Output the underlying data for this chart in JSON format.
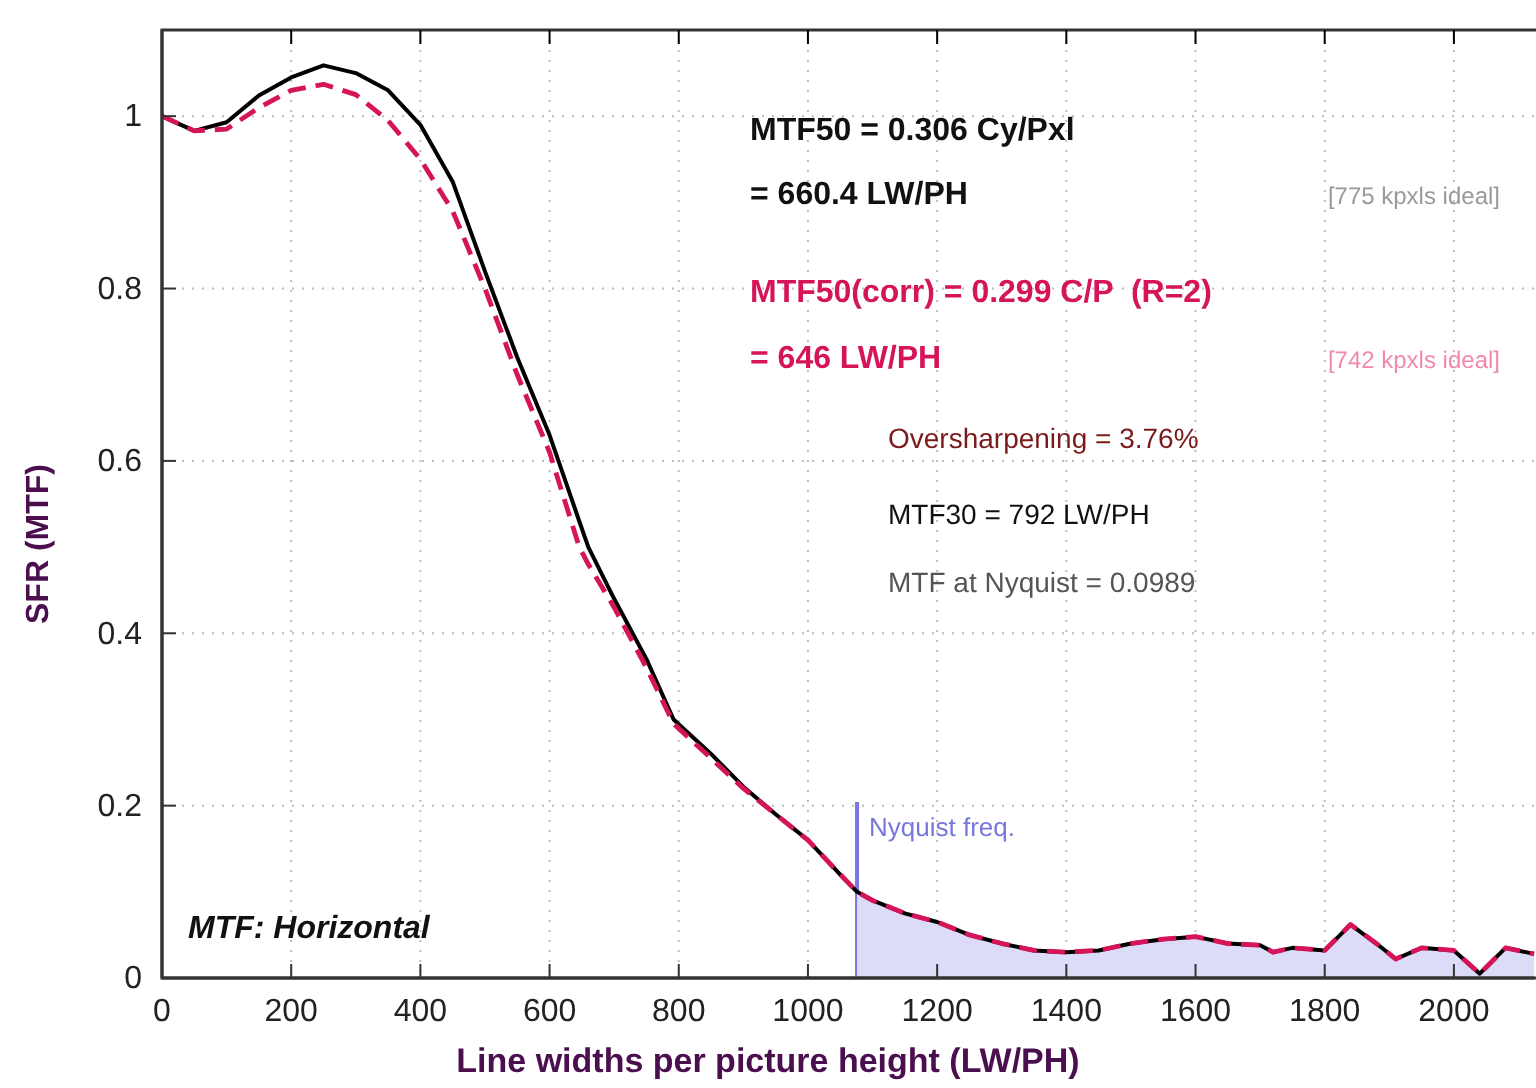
{
  "chart_data": {
    "type": "line",
    "xlabel": "Line widths per picture height (LW/PH)",
    "ylabel": "SFR (MTF)",
    "xlim": [
      0,
      2124
    ],
    "xticks": [
      0,
      200,
      400,
      600,
      800,
      1000,
      1200,
      1400,
      1600,
      1800,
      2000
    ],
    "ylim": [
      0,
      1.1
    ],
    "yticks": [
      0,
      0.2,
      0.4,
      0.6,
      0.8,
      1
    ],
    "grid": true,
    "x": [
      0,
      50,
      100,
      150,
      200,
      250,
      300,
      350,
      400,
      450,
      500,
      550,
      600,
      646,
      660,
      700,
      750,
      792,
      850,
      900,
      950,
      1000,
      1050,
      1076,
      1100,
      1150,
      1200,
      1250,
      1300,
      1350,
      1400,
      1450,
      1500,
      1550,
      1600,
      1650,
      1700,
      1720,
      1750,
      1800,
      1840,
      1880,
      1910,
      1950,
      2000,
      2040,
      2080,
      2124
    ],
    "series": [
      {
        "type": "area",
        "color": "#dcdcf8",
        "x": [
          1076,
          1100,
          1150,
          1200,
          1250,
          1300,
          1350,
          1400,
          1450,
          1500,
          1550,
          1600,
          1650,
          1700,
          1720,
          1750,
          1800,
          1840,
          1880,
          1910,
          1950,
          2000,
          2040,
          2080,
          2124
        ],
        "values": [
          0.1,
          0.09,
          0.075,
          0.065,
          0.05,
          0.04,
          0.032,
          0.03,
          0.032,
          0.04,
          0.045,
          0.048,
          0.04,
          0.038,
          0.03,
          0.035,
          0.032,
          0.062,
          0.04,
          0.022,
          0.035,
          0.032,
          0.005,
          0.035,
          0.028
        ]
      },
      {
        "color": "#000000",
        "line_style": "solid",
        "values": [
          1.0,
          0.983,
          0.993,
          1.024,
          1.045,
          1.059,
          1.05,
          1.03,
          0.99,
          0.924,
          0.82,
          0.72,
          0.63,
          0.53,
          0.5,
          0.44,
          0.37,
          0.3,
          0.26,
          0.222,
          0.19,
          0.16,
          0.12,
          0.1,
          0.09,
          0.075,
          0.065,
          0.05,
          0.04,
          0.032,
          0.03,
          0.032,
          0.04,
          0.045,
          0.048,
          0.04,
          0.038,
          0.03,
          0.035,
          0.032,
          0.062,
          0.04,
          0.022,
          0.035,
          0.032,
          0.005,
          0.035,
          0.028
        ]
      },
      {
        "color": "#d6145a",
        "line_style": "dashed",
        "values": [
          1.0,
          0.983,
          0.985,
          1.01,
          1.03,
          1.037,
          1.025,
          0.995,
          0.95,
          0.89,
          0.8,
          0.7,
          0.61,
          0.5,
          0.48,
          0.43,
          0.36,
          0.295,
          0.255,
          0.22,
          0.19,
          0.16,
          0.12,
          0.1,
          0.09,
          0.075,
          0.065,
          0.05,
          0.04,
          0.032,
          0.03,
          0.032,
          0.04,
          0.045,
          0.048,
          0.04,
          0.038,
          0.03,
          0.035,
          0.032,
          0.062,
          0.04,
          0.022,
          0.035,
          0.032,
          0.005,
          0.035,
          0.028
        ]
      }
    ],
    "ref_lines": [
      {
        "axis": "x",
        "value": 1076,
        "label": "Nyquist freq.",
        "color": "#7777dd"
      }
    ],
    "annotations": [
      "MTF50 = 0.306 Cy/Pxl",
      "= 660.4 LW/PH",
      "[775 kpxls ideal]",
      "MTF50(corr) = 0.299 C/P  (R=2)",
      "= 646 LW/PH",
      "[742 kpxls ideal]",
      "Oversharpening = 3.76%",
      "MTF30 = 792 LW/PH",
      "MTF at Nyquist = 0.0989",
      "MTF: Horizontal"
    ]
  }
}
